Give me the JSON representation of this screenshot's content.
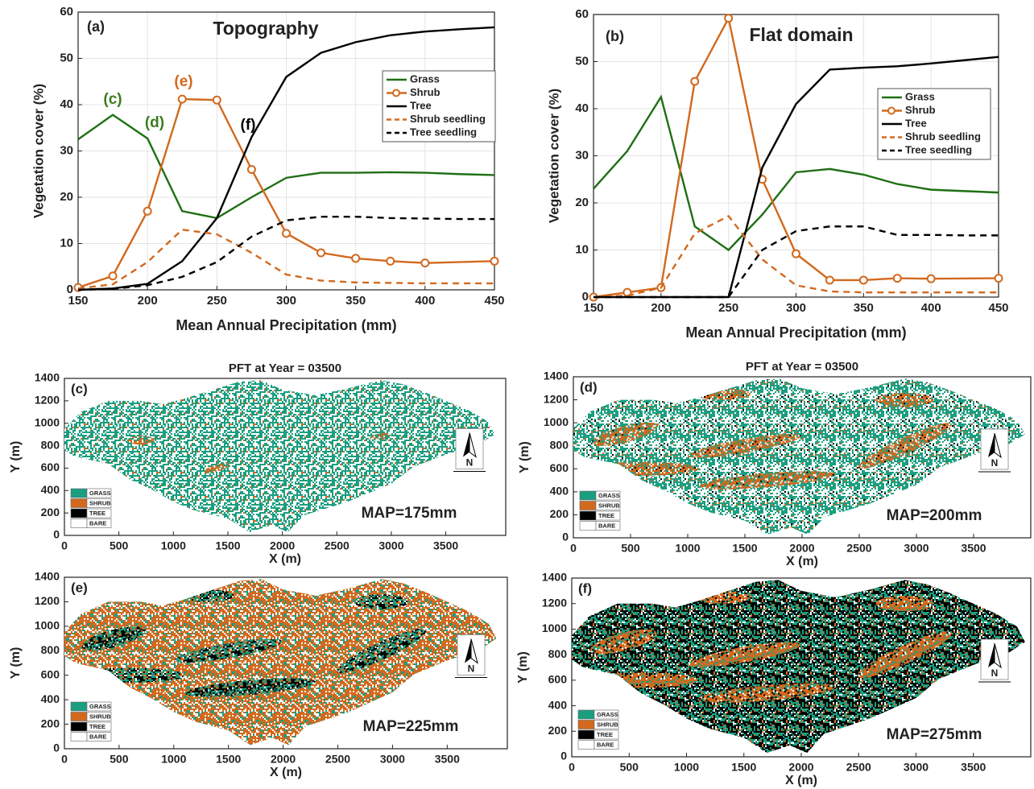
{
  "chart_data": [
    {
      "type": "line",
      "panel_label": "(a)",
      "title": "Topography",
      "xlabel": "Mean Annual Precipitation (mm)",
      "ylabel": "Vegetation cover (%)",
      "x": [
        150,
        175,
        200,
        225,
        250,
        275,
        300,
        325,
        350,
        375,
        400,
        425,
        450
      ],
      "xlim": [
        150,
        450
      ],
      "xticks": [
        150,
        200,
        250,
        300,
        350,
        400,
        450
      ],
      "ylim": [
        0,
        60
      ],
      "yticks": [
        0,
        10,
        20,
        30,
        40,
        50,
        60
      ],
      "grid": true,
      "annotations": [
        {
          "text": "(c)",
          "color": "#3a7d1e"
        },
        {
          "text": "(d)",
          "color": "#3a7d1e"
        },
        {
          "text": "(e)",
          "color": "#d2691e"
        },
        {
          "text": "(f)",
          "color": "#000000"
        }
      ],
      "series": [
        {
          "name": "Grass",
          "color": "#1f6f14",
          "values": [
            32.5,
            37.8,
            32.7,
            17,
            15.5,
            20,
            24.2,
            25.3,
            25.3,
            25.4,
            25.3,
            25,
            24.8
          ]
        },
        {
          "name": "Shrub",
          "color": "#d2691e",
          "marker": "o",
          "x": [
            150,
            175,
            200,
            225,
            250,
            275,
            300,
            325,
            350,
            375,
            400,
            450
          ],
          "values": [
            0.5,
            3,
            17,
            41.2,
            41,
            26,
            12.2,
            8,
            6.8,
            6.2,
            5.8,
            6.2
          ]
        },
        {
          "name": "Tree",
          "color": "#000000",
          "values": [
            0,
            0.3,
            1.3,
            6.2,
            15.5,
            33,
            46,
            51.2,
            53.5,
            55,
            55.8,
            56.3,
            56.7
          ]
        },
        {
          "name": "Shrub seedling",
          "color": "#d2691e",
          "dash": true,
          "values": [
            0.3,
            1.2,
            6,
            13,
            12,
            8,
            3.3,
            2,
            1.6,
            1.5,
            1.4,
            1.4,
            1.4
          ]
        },
        {
          "name": "Tree seedling",
          "color": "#000000",
          "dash": true,
          "values": [
            0,
            0.2,
            1,
            2.8,
            6,
            11.5,
            15,
            15.8,
            15.8,
            15.5,
            15.4,
            15.3,
            15.3
          ]
        }
      ]
    },
    {
      "type": "line",
      "panel_label": "(b)",
      "title": "Flat domain",
      "xlabel": "Mean Annual Precipitation (mm)",
      "ylabel": "Vegetation cover (%)",
      "x": [
        150,
        175,
        200,
        225,
        250,
        275,
        300,
        325,
        350,
        375,
        400,
        425,
        450
      ],
      "xlim": [
        150,
        450
      ],
      "xticks": [
        150,
        200,
        250,
        300,
        350,
        400,
        450
      ],
      "ylim": [
        0,
        60
      ],
      "yticks": [
        0,
        10,
        20,
        30,
        40,
        50,
        60
      ],
      "grid": true,
      "series": [
        {
          "name": "Grass",
          "color": "#1f6f14",
          "values": [
            23,
            31,
            42.5,
            15,
            10,
            17.5,
            26.5,
            27.2,
            26,
            24,
            22.8,
            22.5,
            22.2
          ]
        },
        {
          "name": "Shrub",
          "color": "#d2691e",
          "marker": "o",
          "x": [
            150,
            175,
            200,
            225,
            250,
            275,
            300,
            325,
            350,
            375,
            400,
            450
          ],
          "values": [
            0,
            1,
            2,
            45.8,
            59.2,
            25,
            9.2,
            3.6,
            3.6,
            4,
            3.9,
            4
          ]
        },
        {
          "name": "Tree",
          "color": "#000000",
          "values": [
            0,
            0,
            0,
            0,
            0,
            27.5,
            41,
            48.3,
            48.7,
            49,
            49.6,
            50.3,
            51
          ]
        },
        {
          "name": "Shrub seedling",
          "color": "#d2691e",
          "dash": true,
          "values": [
            0,
            0.3,
            2,
            13.5,
            17.2,
            8,
            2.5,
            1.2,
            1,
            1,
            1,
            1,
            1
          ]
        },
        {
          "name": "Tree seedling",
          "color": "#000000",
          "dash": true,
          "values": [
            0,
            0,
            0,
            0,
            0,
            10,
            14,
            15,
            15,
            13.2,
            13.2,
            13.1,
            13.1
          ]
        }
      ]
    },
    {
      "type": "map",
      "panel_label": "(c)",
      "title": "PFT at Year = 03500",
      "xlabel": "X (m)",
      "ylabel": "Y (m)",
      "xlim": [
        0,
        4050
      ],
      "xticks": [
        0,
        500,
        1000,
        1500,
        2000,
        2500,
        3000,
        3500
      ],
      "ylim": [
        0,
        1400
      ],
      "yticks": [
        0,
        200,
        400,
        600,
        800,
        1000,
        1200,
        1400
      ],
      "legend": [
        {
          "name": "GRASS",
          "color": "#1b9e80"
        },
        {
          "name": "SHRUB",
          "color": "#d2691e"
        },
        {
          "name": "TREE",
          "color": "#000000"
        },
        {
          "name": "BARE",
          "color": "#ffffff"
        }
      ],
      "annotation": "MAP=175mm",
      "north": "N"
    },
    {
      "type": "map",
      "panel_label": "(d)",
      "title": "PFT at Year = 03500",
      "xlabel": "X (m)",
      "ylabel": "Y (m)",
      "xlim": [
        0,
        4000
      ],
      "xticks": [
        0,
        500,
        1000,
        1500,
        2000,
        2500,
        3000,
        3500
      ],
      "ylim": [
        0,
        1400
      ],
      "yticks": [
        0,
        200,
        400,
        600,
        800,
        1000,
        1200,
        1400
      ],
      "legend": [
        {
          "name": "GRASS",
          "color": "#1b9e80"
        },
        {
          "name": "SHRUB",
          "color": "#d2691e"
        },
        {
          "name": "TREE",
          "color": "#000000"
        },
        {
          "name": "BARE",
          "color": "#ffffff"
        }
      ],
      "annotation": "MAP=200mm",
      "north": "N"
    },
    {
      "type": "map",
      "panel_label": "(e)",
      "xlabel": "X (m)",
      "ylabel": "Y (m)",
      "xlim": [
        0,
        4050
      ],
      "xticks": [
        0,
        500,
        1000,
        1500,
        2000,
        2500,
        3000,
        3500
      ],
      "ylim": [
        0,
        1400
      ],
      "yticks": [
        0,
        200,
        400,
        600,
        800,
        1000,
        1200,
        1400
      ],
      "legend": [
        {
          "name": "GRASS",
          "color": "#1b9e80"
        },
        {
          "name": "SHRUB",
          "color": "#d2691e"
        },
        {
          "name": "TREE",
          "color": "#000000"
        },
        {
          "name": "BARE",
          "color": "#ffffff"
        }
      ],
      "annotation": "MAP=225mm",
      "north": "N"
    },
    {
      "type": "map",
      "panel_label": "(f)",
      "xlabel": "X (m)",
      "ylabel": "Y (m)",
      "xlim": [
        0,
        4000
      ],
      "xticks": [
        0,
        500,
        1000,
        1500,
        2000,
        2500,
        3000,
        3500
      ],
      "ylim": [
        0,
        1400
      ],
      "yticks": [
        0,
        200,
        400,
        600,
        800,
        1000,
        1200,
        1400
      ],
      "legend": [
        {
          "name": "GRASS",
          "color": "#1b9e80"
        },
        {
          "name": "SHRUB",
          "color": "#d2691e"
        },
        {
          "name": "TREE",
          "color": "#000000"
        },
        {
          "name": "BARE",
          "color": "#ffffff"
        }
      ],
      "annotation": "MAP=275mm",
      "north": "N"
    }
  ]
}
